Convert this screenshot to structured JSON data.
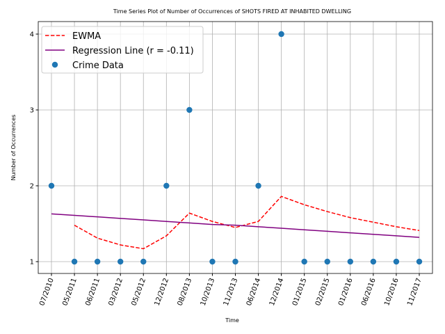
{
  "chart_data": {
    "type": "line",
    "title": "Time Series Plot of Number of Occurrences of SHOTS FIRED AT INHABITED DWELLING",
    "x_label": "Time",
    "y_label": "Number of Occurrences",
    "categories": [
      "07/2010",
      "05/2011",
      "06/2011",
      "03/2012",
      "05/2012",
      "12/2012",
      "08/2013",
      "10/2013",
      "11/2013",
      "06/2014",
      "12/2014",
      "01/2015",
      "02/2015",
      "01/2016",
      "06/2016",
      "10/2016",
      "11/2017"
    ],
    "series": [
      {
        "name": "EWMA",
        "color": "#ff0000",
        "style": "dashed",
        "values": [
          null,
          1.48,
          1.31,
          1.22,
          1.17,
          1.34,
          1.64,
          1.53,
          1.45,
          1.53,
          1.86,
          1.75,
          1.66,
          1.58,
          1.52,
          1.46,
          1.41
        ]
      },
      {
        "name": "Regression Line (r = -0.11)",
        "color": "#800080",
        "style": "solid",
        "values": [
          1.63,
          1.61,
          1.59,
          1.57,
          1.55,
          1.53,
          1.51,
          1.49,
          1.48,
          1.46,
          1.44,
          1.42,
          1.4,
          1.38,
          1.36,
          1.34,
          1.32
        ]
      },
      {
        "name": "Crime Data",
        "color": "#1f77b4",
        "style": "points",
        "values": [
          2,
          1,
          1,
          1,
          1,
          2,
          3,
          1,
          1,
          2,
          4,
          1,
          1,
          1,
          1,
          1,
          1
        ]
      }
    ],
    "ylim": [
      0.844,
      4.165
    ],
    "yticks": [
      1,
      2,
      3,
      4
    ],
    "grid": true,
    "legend": "upper left"
  }
}
